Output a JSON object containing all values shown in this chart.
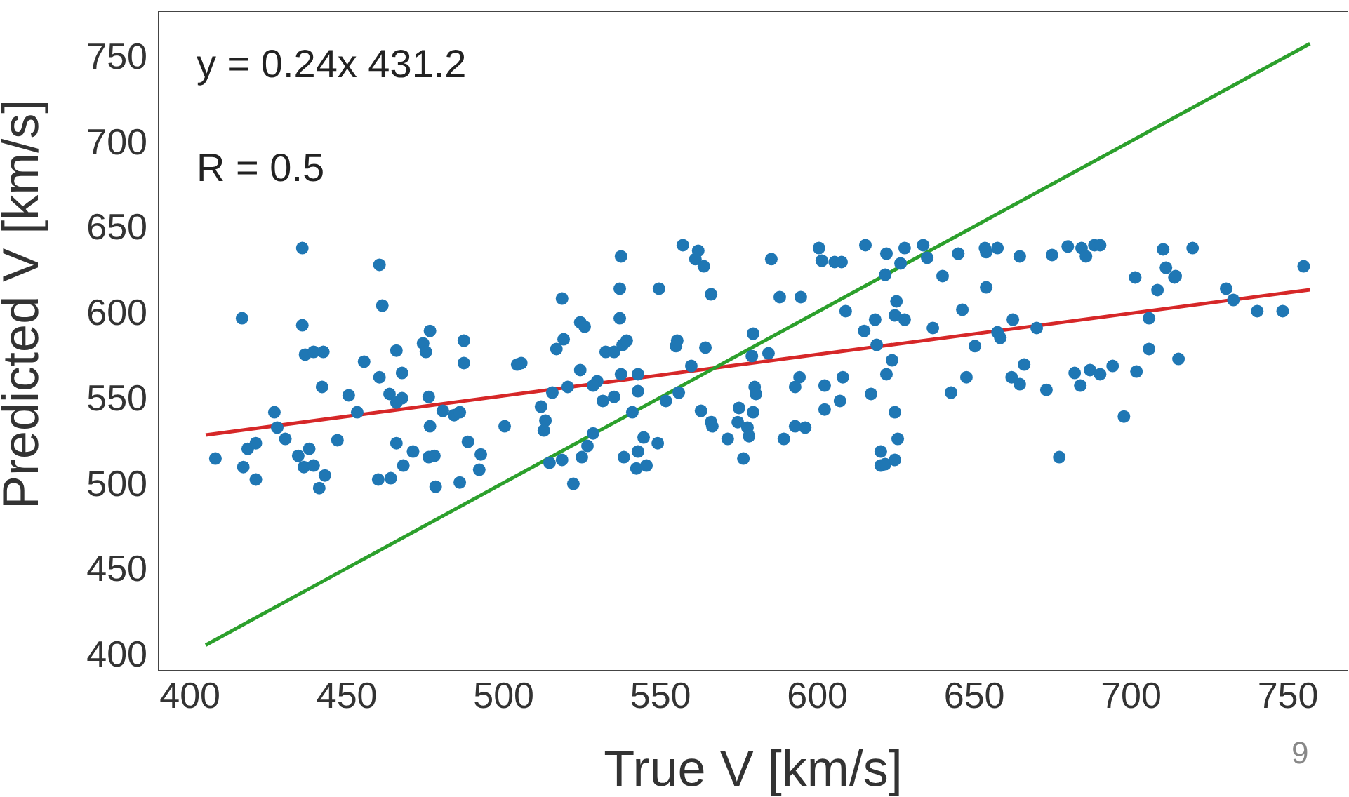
{
  "chart_data": {
    "type": "scatter",
    "xlabel": "True V [km/s]",
    "ylabel": "Predicted V [km/s]",
    "xlim": [
      390,
      769
    ],
    "ylim": [
      390,
      776
    ],
    "xticks": [
      400,
      450,
      500,
      550,
      600,
      650,
      700,
      750
    ],
    "yticks": [
      400,
      450,
      500,
      550,
      600,
      650,
      700,
      750
    ],
    "grid": false,
    "legend": false,
    "annotations": [
      "y = 0.24x 431.2",
      "R = 0.5",
      "9"
    ],
    "series": [
      {
        "marker": "circle",
        "color": "#1f77b4",
        "x": [
          435.8,
          460.4,
          416.6,
          461.3,
          435.8,
          476.5,
          436.7,
          439.4,
          442.5,
          465.8,
          474.3,
          475.2,
          455.5,
          460.4,
          467.6,
          442.1,
          450.6,
          463.6,
          467.6,
          465.8,
          476.1,
          453.3,
          480.6,
          484.2,
          486.0,
          426.9,
          427.8,
          476.5,
          430.4,
          447.0,
          418.4,
          421.0,
          465.8,
          471.1,
          408.1,
          434.5,
          438.0,
          476.1,
          477.9,
          417.0,
          436.3,
          439.4,
          468.0,
          421.0,
          443.0,
          441.2,
          460.0,
          464.0,
          478.3,
          486.0,
          557.1,
          562.0,
          561.1,
          563.8,
          537.4,
          537.0,
          549.5,
          566.1,
          518.6,
          537.0,
          524.4,
          525.8,
          487.3,
          519.1,
          516.8,
          532.5,
          535.2,
          537.9,
          539.2,
          554.9,
          555.3,
          564.3,
          579.5,
          487.3,
          504.3,
          505.6,
          524.4,
          559.8,
          579.1,
          537.4,
          542.8,
          529.8,
          528.5,
          520.4,
          515.5,
          542.8,
          580.0,
          580.4,
          535.2,
          531.6,
          551.7,
          555.8,
          511.9,
          541.0,
          562.9,
          575.0,
          579.5,
          513.3,
          512.8,
          500.3,
          566.1,
          566.5,
          574.6,
          577.7,
          578.2,
          571.4,
          528.5,
          488.6,
          544.6,
          549.1,
          526.7,
          492.7,
          514.6,
          518.6,
          524.9,
          538.3,
          542.8,
          576.4,
          492.2,
          542.3,
          545.5,
          522.2,
          600.5,
          615.3,
          622.0,
          627.8,
          633.7,
          644.9,
          653.4,
          653.8,
          657.4,
          664.5,
          674.8,
          585.3,
          601.4,
          605.5,
          607.7,
          635.0,
          626.5,
          621.6,
          639.9,
          653.8,
          588.0,
          594.7,
          625.2,
          609.0,
          646.2,
          618.4,
          624.7,
          627.8,
          614.9,
          662.3,
          636.8,
          669.9,
          657.4,
          658.3,
          618.9,
          650.2,
          584.4,
          623.8,
          622.0,
          665.9,
          594.3,
          608.1,
          647.5,
          661.9,
          664.5,
          592.9,
          602.3,
          673.0,
          617.1,
          642.6,
          607.2,
          602.3,
          624.7,
          592.9,
          596.1,
          589.3,
          625.6,
          620.2,
          620.2,
          621.6,
          624.7,
          679.8,
          684.2,
          685.6,
          688.3,
          690.1,
          710.2,
          719.6,
          701.3,
          711.1,
          713.8,
          714.2,
          708.4,
          730.3,
          732.6,
          755.0,
          740.2,
          748.3,
          705.7,
          705.7,
          715.1,
          682.0,
          686.9,
          690.1,
          694.1,
          701.7,
          683.8,
          697.7,
          677.1
        ],
        "values": [
          637.4,
          627.6,
          596.3,
          603.7,
          592.2,
          588.9,
          575.0,
          576.6,
          576.6,
          577.4,
          581.6,
          576.6,
          570.9,
          561.8,
          564.3,
          556.1,
          551.2,
          552.0,
          549.5,
          547.0,
          550.3,
          541.3,
          542.1,
          539.6,
          541.3,
          541.3,
          532.3,
          533.1,
          525.7,
          524.9,
          519.9,
          523.2,
          523.2,
          518.3,
          514.2,
          515.8,
          519.9,
          515.0,
          515.8,
          509.2,
          509.2,
          510.1,
          510.1,
          501.9,
          504.3,
          496.9,
          501.9,
          502.7,
          497.7,
          500.2,
          639.1,
          635.8,
          630.9,
          626.7,
          632.5,
          613.6,
          613.6,
          610.3,
          607.8,
          596.3,
          593.9,
          591.4,
          583.2,
          584.0,
          578.3,
          576.6,
          576.6,
          580.7,
          583.2,
          580.0,
          583.2,
          579.1,
          587.3,
          570.1,
          569.2,
          570.1,
          566.0,
          568.4,
          574.2,
          563.5,
          563.5,
          559.4,
          556.9,
          556.1,
          552.8,
          553.6,
          556.1,
          552.0,
          550.3,
          547.9,
          547.9,
          552.8,
          544.6,
          541.3,
          542.1,
          543.8,
          541.3,
          536.4,
          530.6,
          533.1,
          535.5,
          533.1,
          535.5,
          532.3,
          527.3,
          525.7,
          528.9,
          524.0,
          526.5,
          523.2,
          521.6,
          516.6,
          511.7,
          513.4,
          515.0,
          515.0,
          518.3,
          514.2,
          507.6,
          508.4,
          510.1,
          499.4,
          637.4,
          639.1,
          634.1,
          637.4,
          639.1,
          634.1,
          637.4,
          635.0,
          637.4,
          632.5,
          633.3,
          630.9,
          630.0,
          629.2,
          629.2,
          631.7,
          628.4,
          621.8,
          621.0,
          614.4,
          608.7,
          608.7,
          606.2,
          600.5,
          601.3,
          595.5,
          598.0,
          595.5,
          588.9,
          595.5,
          590.6,
          590.6,
          588.1,
          584.8,
          580.7,
          580.0,
          575.8,
          571.7,
          563.5,
          569.2,
          561.8,
          561.8,
          561.8,
          561.8,
          557.7,
          556.1,
          556.9,
          554.4,
          552.0,
          552.8,
          547.9,
          542.9,
          541.3,
          533.1,
          532.3,
          525.7,
          525.7,
          518.3,
          510.1,
          510.9,
          513.4,
          638.3,
          637.4,
          632.5,
          639.1,
          639.1,
          636.6,
          637.4,
          620.2,
          625.9,
          620.2,
          621.0,
          612.8,
          613.6,
          607.0,
          626.7,
          600.5,
          600.5,
          596.3,
          578.3,
          572.5,
          564.3,
          566.0,
          563.5,
          568.4,
          565.1,
          556.9,
          538.8,
          515.0
        ]
      },
      {
        "type": "line",
        "color": "#d62728",
        "x": [
          405,
          757
        ],
        "values": [
          528,
          613
        ]
      },
      {
        "type": "line",
        "color": "#2ca02c",
        "x": [
          405,
          757
        ],
        "values": [
          405,
          757
        ]
      }
    ]
  }
}
